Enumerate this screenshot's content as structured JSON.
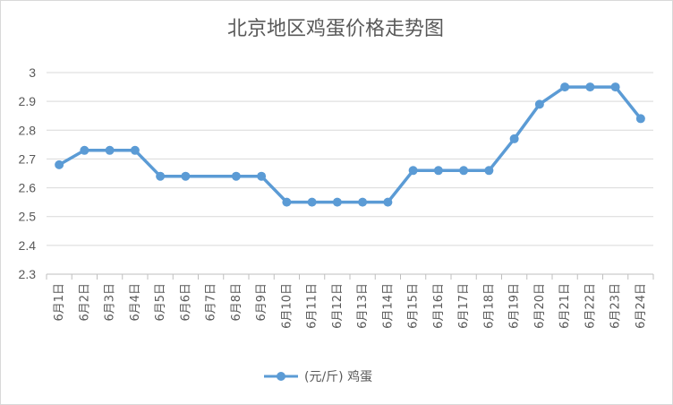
{
  "chart_data": {
    "type": "line",
    "title": "北京地区鸡蛋价格走势图",
    "xlabel": "",
    "ylabel": "",
    "ylim": [
      2.3,
      3.0
    ],
    "yticks": [
      "2.3",
      "2.4",
      "2.5",
      "2.6",
      "2.7",
      "2.8",
      "2.9",
      "3"
    ],
    "grid": true,
    "legend_position": "bottom",
    "categories": [
      "6月1日",
      "6月2日",
      "6月3日",
      "6月4日",
      "6月5日",
      "6月6日",
      "6月7日",
      "6月8日",
      "6月9日",
      "6月10日",
      "6月11日",
      "6月12日",
      "6月13日",
      "6月14日",
      "6月15日",
      "6月16日",
      "6月17日",
      "6月18日",
      "6月19日",
      "6月20日",
      "6月21日",
      "6月22日",
      "6月23日",
      "6月24日"
    ],
    "series": [
      {
        "name": "(元/斤) 鸡蛋",
        "color": "#5b9bd5",
        "values": [
          2.68,
          2.73,
          2.73,
          2.73,
          2.64,
          2.64,
          null,
          2.64,
          2.64,
          2.55,
          2.55,
          2.55,
          2.55,
          2.55,
          2.66,
          2.66,
          2.66,
          2.66,
          2.77,
          2.89,
          2.95,
          2.95,
          2.95,
          2.84
        ]
      }
    ]
  }
}
